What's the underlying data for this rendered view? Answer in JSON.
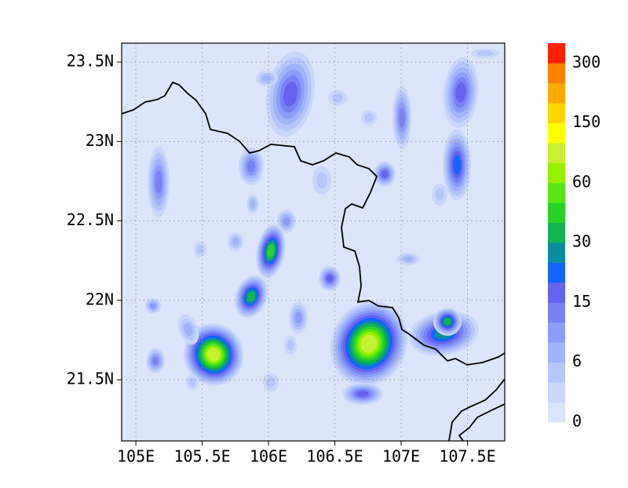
{
  "map": {
    "xlim": [
      104.893,
      107.781
    ],
    "ylim": [
      21.115,
      23.619
    ],
    "xticks": [
      {
        "value": 105,
        "label": "105E"
      },
      {
        "value": 105.5,
        "label": "105.5E"
      },
      {
        "value": 106,
        "label": "106E"
      },
      {
        "value": 106.5,
        "label": "106.5E"
      },
      {
        "value": 107,
        "label": "107E"
      },
      {
        "value": 107.5,
        "label": "107.5E"
      }
    ],
    "yticks": [
      {
        "value": 21.5,
        "label": "21.5N"
      },
      {
        "value": 22,
        "label": "22N"
      },
      {
        "value": 22.5,
        "label": "22.5N"
      },
      {
        "value": 23,
        "label": "23N"
      },
      {
        "value": 23.5,
        "label": "23.5N"
      }
    ],
    "grid": true,
    "colorbar": {
      "colors": [
        "#dce6fa",
        "#c8d7fa",
        "#b4c6fa",
        "#a0b4fa",
        "#8c9cfa",
        "#7882f5",
        "#6464f0",
        "#1464ff",
        "#0a8ca0",
        "#10b450",
        "#28d228",
        "#5ae614",
        "#96f000",
        "#c8f032",
        "#ffff00",
        "#ffd700",
        "#ffaa00",
        "#ff8200",
        "#ff1e00"
      ],
      "ticks": [
        0,
        6,
        15,
        30,
        60,
        150,
        300
      ]
    }
  }
}
